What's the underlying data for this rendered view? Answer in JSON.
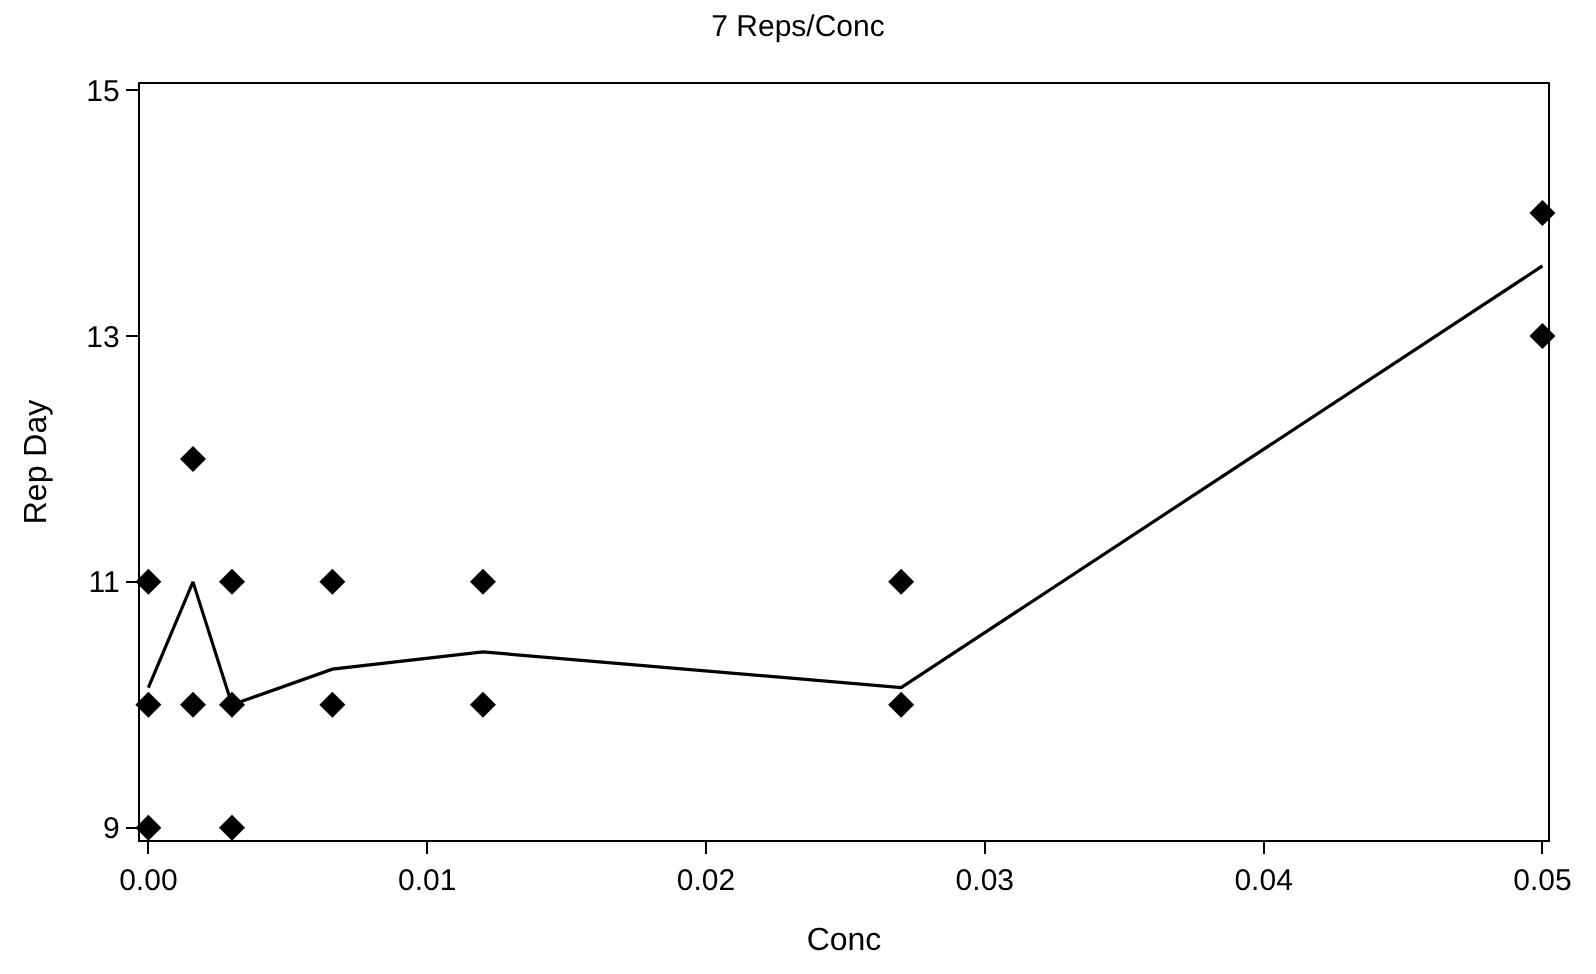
{
  "chart_data": {
    "type": "scatter",
    "title": "7 Reps/Conc",
    "xlabel": "Conc",
    "ylabel": "Rep Day",
    "xlim": [
      -0.0003,
      0.0502
    ],
    "xticks": [
      {
        "value": 0,
        "label": "0.00"
      },
      0.01,
      0.02,
      0.03,
      0.04,
      0.05
    ],
    "ylim": [
      8.9,
      15.05
    ],
    "yticks": [
      9,
      11,
      13,
      15
    ],
    "series": [
      {
        "marker": "diamond",
        "color": "#000000",
        "x": [
          0,
          0,
          0,
          0.0016,
          0.0016,
          0.003,
          0.003,
          0.003,
          0.0066,
          0.0066,
          0.012,
          0.012,
          0.027,
          0.027,
          0.05,
          0.05
        ],
        "values": [
          9,
          10,
          11,
          10,
          12,
          9,
          10,
          11,
          10,
          11,
          10,
          11,
          10,
          11,
          13,
          14
        ]
      },
      {
        "type": "line",
        "marker": "none",
        "color": "#000000",
        "x": [
          0,
          0.0016,
          0.003,
          0.0066,
          0.012,
          0.027,
          0.05
        ],
        "values": [
          10.14,
          11,
          10.0,
          10.29,
          10.43,
          10.14,
          13.57
        ]
      }
    ]
  }
}
